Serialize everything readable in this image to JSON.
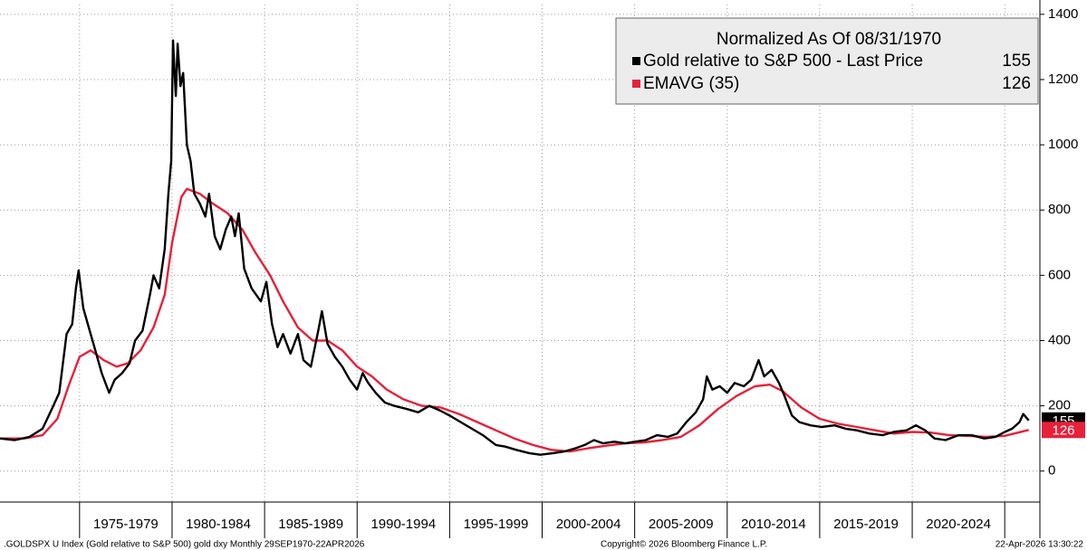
{
  "chart_data": {
    "type": "line",
    "legend_title": "Normalized As Of 08/31/1970",
    "xlim": [
      1970.7,
      2026.9
    ],
    "xticks": [
      1975,
      1980,
      1985,
      1990,
      1995,
      2000,
      2005,
      2010,
      2015,
      2020,
      2025
    ],
    "x_band_labels": [
      "1975-1979",
      "1980-1984",
      "1985-1989",
      "1990-1994",
      "1995-1999",
      "2000-2004",
      "2005-2009",
      "2010-2014",
      "2015-2019",
      "2020-2024"
    ],
    "ylim": [
      -95,
      1430
    ],
    "yticks": [
      0,
      200,
      400,
      600,
      800,
      1000,
      1200,
      1400
    ],
    "grid": true,
    "series": [
      {
        "name": "Gold relative to S&P 500 - Last Price",
        "color": "#000000",
        "last": 155,
        "x": [
          1970.7,
          1971.5,
          1972.3,
          1973.0,
          1973.5,
          1973.9,
          1974.3,
          1974.6,
          1974.8,
          1974.95,
          1975.2,
          1975.5,
          1975.8,
          1976.2,
          1976.6,
          1976.9,
          1977.3,
          1977.7,
          1978.0,
          1978.4,
          1978.8,
          1979.0,
          1979.3,
          1979.6,
          1979.8,
          1979.95,
          1980.05,
          1980.2,
          1980.3,
          1980.45,
          1980.6,
          1980.8,
          1981.0,
          1981.2,
          1981.5,
          1981.8,
          1982.0,
          1982.3,
          1982.6,
          1982.9,
          1983.2,
          1983.4,
          1983.6,
          1983.9,
          1984.3,
          1984.8,
          1985.1,
          1985.4,
          1985.7,
          1986.0,
          1986.4,
          1986.8,
          1987.1,
          1987.5,
          1987.9,
          1988.1,
          1988.4,
          1988.8,
          1989.2,
          1989.6,
          1990.0,
          1990.3,
          1990.6,
          1991.0,
          1991.5,
          1992.0,
          1992.7,
          1993.3,
          1993.9,
          1994.5,
          1995.0,
          1995.6,
          1996.2,
          1996.8,
          1997.5,
          1998.0,
          1998.6,
          1999.3,
          1999.9,
          2000.6,
          2001.2,
          2001.8,
          2002.3,
          2002.8,
          2003.3,
          2003.9,
          2004.5,
          2005.0,
          2005.6,
          2006.2,
          2006.8,
          2007.3,
          2007.8,
          2008.3,
          2008.7,
          2008.9,
          2009.2,
          2009.6,
          2010.0,
          2010.4,
          2010.9,
          2011.3,
          2011.7,
          2012.0,
          2012.4,
          2012.8,
          2013.1,
          2013.5,
          2013.9,
          2014.5,
          2015.1,
          2015.8,
          2016.4,
          2017.0,
          2017.7,
          2018.4,
          2019.0,
          2019.7,
          2020.2,
          2020.7,
          2021.2,
          2021.8,
          2022.5,
          2023.2,
          2023.9,
          2024.5,
          2025.0,
          2025.4,
          2025.8,
          2026.0,
          2026.3
        ],
        "values": [
          100,
          95,
          105,
          130,
          190,
          240,
          420,
          450,
          560,
          615,
          500,
          440,
          380,
          300,
          240,
          280,
          300,
          330,
          400,
          430,
          540,
          600,
          560,
          680,
          850,
          950,
          1320,
          1150,
          1310,
          1180,
          1220,
          1000,
          950,
          850,
          820,
          780,
          850,
          720,
          680,
          740,
          780,
          720,
          790,
          620,
          560,
          520,
          580,
          450,
          380,
          420,
          360,
          420,
          340,
          320,
          430,
          490,
          390,
          350,
          320,
          280,
          250,
          300,
          270,
          240,
          210,
          200,
          190,
          180,
          200,
          185,
          170,
          150,
          130,
          110,
          80,
          75,
          65,
          55,
          50,
          55,
          60,
          70,
          80,
          95,
          85,
          90,
          85,
          90,
          95,
          110,
          105,
          115,
          150,
          180,
          220,
          290,
          250,
          260,
          240,
          270,
          260,
          280,
          340,
          290,
          310,
          270,
          230,
          170,
          150,
          140,
          135,
          140,
          130,
          125,
          115,
          110,
          120,
          125,
          140,
          125,
          100,
          95,
          110,
          110,
          100,
          105,
          120,
          130,
          150,
          175,
          155
        ]
      },
      {
        "name": "EMAVG (35)",
        "color": "#e8203a",
        "last": 126,
        "x": [
          1970.7,
          1972.0,
          1973.0,
          1973.8,
          1974.4,
          1975.0,
          1975.6,
          1976.3,
          1977.0,
          1977.6,
          1978.3,
          1979.0,
          1979.6,
          1980.0,
          1980.5,
          1980.8,
          1981.5,
          1982.2,
          1983.0,
          1983.8,
          1984.5,
          1985.3,
          1986.0,
          1986.8,
          1987.6,
          1988.4,
          1989.2,
          1990.0,
          1990.8,
          1991.6,
          1992.5,
          1993.5,
          1994.5,
          1995.5,
          1996.5,
          1997.5,
          1998.5,
          1999.5,
          2000.5,
          2001.5,
          2002.5,
          2003.5,
          2004.5,
          2005.5,
          2006.5,
          2007.5,
          2008.5,
          2009.5,
          2010.5,
          2011.5,
          2012.3,
          2013.0,
          2014.0,
          2015.0,
          2016.0,
          2017.0,
          2018.0,
          2019.0,
          2020.0,
          2021.0,
          2022.0,
          2023.0,
          2024.0,
          2025.0,
          2026.3
        ],
        "values": [
          100,
          100,
          110,
          160,
          260,
          350,
          370,
          340,
          320,
          330,
          370,
          440,
          540,
          700,
          840,
          865,
          850,
          820,
          790,
          740,
          670,
          600,
          520,
          440,
          400,
          400,
          370,
          320,
          290,
          250,
          220,
          200,
          195,
          175,
          150,
          125,
          100,
          80,
          65,
          60,
          70,
          78,
          85,
          88,
          95,
          105,
          140,
          190,
          230,
          260,
          265,
          245,
          195,
          160,
          145,
          135,
          125,
          115,
          120,
          118,
          110,
          108,
          105,
          108,
          126
        ]
      }
    ]
  },
  "footer": {
    "left": ".GOLDSPX U Index (Gold relative to S&P 500) gold dxy Monthly 29SEP1970-22APR2026",
    "center": "Copyright© 2026 Bloomberg Finance L.P.",
    "right": "22-Apr-2026 13:30:22"
  }
}
